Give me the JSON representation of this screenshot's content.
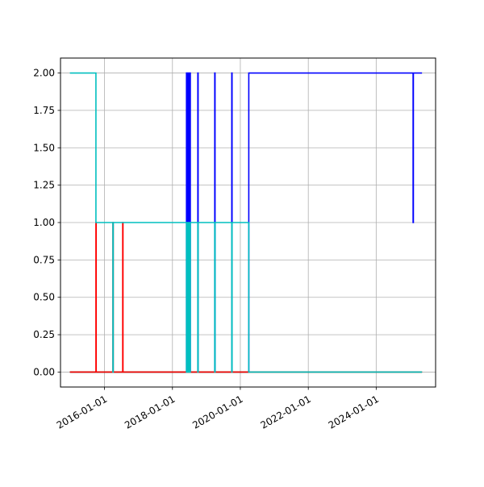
{
  "chart_data": {
    "type": "line",
    "title": "",
    "xlabel": "",
    "ylabel": "",
    "x_axis_type": "date",
    "xlim": [
      "2014-09-15",
      "2025-10-01"
    ],
    "ylim": [
      -0.1,
      2.1
    ],
    "grid": true,
    "legend": "none",
    "xticks": [
      {
        "value": "2016-01-01",
        "label": "2016-01-01"
      },
      {
        "value": "2018-01-01",
        "label": "2018-01-01"
      },
      {
        "value": "2020-01-01",
        "label": "2020-01-01"
      },
      {
        "value": "2022-01-01",
        "label": "2022-01-01"
      },
      {
        "value": "2024-01-01",
        "label": "2024-01-01"
      }
    ],
    "yticks": [
      {
        "value": 0.0,
        "label": "0.00"
      },
      {
        "value": 0.25,
        "label": "0.25"
      },
      {
        "value": 0.5,
        "label": "0.50"
      },
      {
        "value": 0.75,
        "label": "0.75"
      },
      {
        "value": 1.0,
        "label": "1.00"
      },
      {
        "value": 1.25,
        "label": "1.25"
      },
      {
        "value": 1.5,
        "label": "1.50"
      },
      {
        "value": 1.75,
        "label": "1.75"
      },
      {
        "value": 2.0,
        "label": "2.00"
      }
    ],
    "series": [
      {
        "color": "#0000ff",
        "steps": [
          [
            "2015-01-01",
            0
          ],
          [
            "2018-06-01",
            0
          ],
          [
            "2018-06-01",
            2
          ],
          [
            "2018-06-06",
            2
          ],
          [
            "2018-06-06",
            0
          ],
          [
            "2018-06-12",
            0
          ],
          [
            "2018-06-12",
            2
          ],
          [
            "2018-06-18",
            2
          ],
          [
            "2018-06-18",
            0
          ],
          [
            "2018-06-24",
            0
          ],
          [
            "2018-06-24",
            2
          ],
          [
            "2018-06-30",
            2
          ],
          [
            "2018-06-30",
            0
          ],
          [
            "2018-07-06",
            0
          ],
          [
            "2018-07-06",
            2
          ],
          [
            "2018-07-12",
            2
          ],
          [
            "2018-07-12",
            0
          ],
          [
            "2018-10-01",
            0
          ],
          [
            "2018-10-01",
            2
          ],
          [
            "2018-10-04",
            2
          ],
          [
            "2018-10-04",
            0
          ],
          [
            "2019-04-01",
            0
          ],
          [
            "2019-04-01",
            2
          ],
          [
            "2019-04-04",
            2
          ],
          [
            "2019-04-04",
            0
          ],
          [
            "2019-10-01",
            0
          ],
          [
            "2019-10-01",
            2
          ],
          [
            "2019-10-04",
            2
          ],
          [
            "2019-10-04",
            0
          ],
          [
            "2020-04-01",
            0
          ],
          [
            "2020-04-01",
            2
          ],
          [
            "2025-02-01",
            2
          ],
          [
            "2025-02-01",
            1
          ],
          [
            "2025-02-04",
            1
          ],
          [
            "2025-02-04",
            2
          ],
          [
            "2025-05-01",
            2
          ]
        ]
      },
      {
        "color": "#008000",
        "steps": [
          [
            "2015-01-01",
            0
          ],
          [
            "2025-05-01",
            0
          ]
        ]
      },
      {
        "color": "#ff0000",
        "steps": [
          [
            "2015-01-01",
            0
          ],
          [
            "2015-10-01",
            0
          ],
          [
            "2015-10-01",
            1
          ],
          [
            "2015-10-04",
            1
          ],
          [
            "2015-10-04",
            0
          ],
          [
            "2016-04-01",
            0
          ],
          [
            "2016-04-01",
            1
          ],
          [
            "2016-04-04",
            1
          ],
          [
            "2016-04-04",
            0
          ],
          [
            "2016-07-15",
            0
          ],
          [
            "2016-07-15",
            1
          ],
          [
            "2016-07-18",
            1
          ],
          [
            "2016-07-18",
            0
          ],
          [
            "2025-05-01",
            0
          ]
        ]
      },
      {
        "color": "#00bfbf",
        "steps": [
          [
            "2015-01-01",
            2
          ],
          [
            "2015-10-01",
            2
          ],
          [
            "2015-10-01",
            1
          ],
          [
            "2016-04-01",
            1
          ],
          [
            "2016-04-01",
            0
          ],
          [
            "2016-04-04",
            0
          ],
          [
            "2016-04-04",
            1
          ],
          [
            "2018-06-01",
            1
          ],
          [
            "2018-06-01",
            0
          ],
          [
            "2018-06-06",
            0
          ],
          [
            "2018-06-06",
            1
          ],
          [
            "2018-06-12",
            1
          ],
          [
            "2018-06-12",
            0
          ],
          [
            "2018-06-18",
            0
          ],
          [
            "2018-06-18",
            1
          ],
          [
            "2018-06-24",
            1
          ],
          [
            "2018-06-24",
            0
          ],
          [
            "2018-06-30",
            0
          ],
          [
            "2018-06-30",
            1
          ],
          [
            "2018-07-06",
            1
          ],
          [
            "2018-07-06",
            0
          ],
          [
            "2018-07-12",
            0
          ],
          [
            "2018-07-12",
            1
          ],
          [
            "2018-10-01",
            1
          ],
          [
            "2018-10-01",
            0
          ],
          [
            "2018-10-04",
            0
          ],
          [
            "2018-10-04",
            1
          ],
          [
            "2019-04-01",
            1
          ],
          [
            "2019-04-01",
            0
          ],
          [
            "2019-04-04",
            0
          ],
          [
            "2019-04-04",
            1
          ],
          [
            "2019-10-01",
            1
          ],
          [
            "2019-10-01",
            0
          ],
          [
            "2019-10-04",
            0
          ],
          [
            "2019-10-04",
            1
          ],
          [
            "2020-04-01",
            1
          ],
          [
            "2020-04-01",
            0
          ],
          [
            "2025-05-01",
            0
          ]
        ]
      }
    ]
  }
}
